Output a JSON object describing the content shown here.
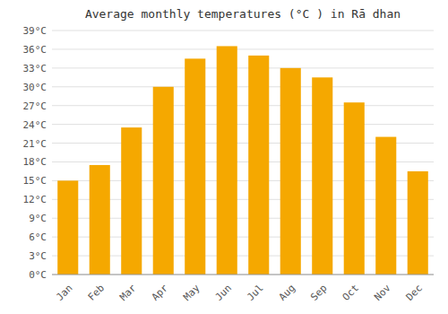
{
  "chart_data": {
    "type": "bar",
    "title": "Average monthly temperatures (°C ) in Rā dhan",
    "categories": [
      "Jan",
      "Feb",
      "Mar",
      "Apr",
      "May",
      "Jun",
      "Jul",
      "Aug",
      "Sep",
      "Oct",
      "Nov",
      "Dec"
    ],
    "values": [
      15,
      17.5,
      23.5,
      30,
      34.5,
      36.5,
      35,
      33,
      31.5,
      27.5,
      22,
      16.5
    ],
    "color": "#F5A800",
    "ylim": [
      0,
      39
    ],
    "yticks": [
      {
        "value": 0,
        "label": "0°C"
      },
      {
        "value": 3,
        "label": "3°C"
      },
      {
        "value": 6,
        "label": "6°C"
      },
      {
        "value": 9,
        "label": "9°C"
      },
      {
        "value": 12,
        "label": "12°C"
      },
      {
        "value": 15,
        "label": "15°C"
      },
      {
        "value": 18,
        "label": "18°C"
      },
      {
        "value": 21,
        "label": "21°C"
      },
      {
        "value": 24,
        "label": "24°C"
      },
      {
        "value": 27,
        "label": "27°C"
      },
      {
        "value": 30,
        "label": "30°C"
      },
      {
        "value": 33,
        "label": "33°C"
      },
      {
        "value": 36,
        "label": "36°C"
      },
      {
        "value": 39,
        "label": "39°C"
      }
    ],
    "grid": true
  }
}
